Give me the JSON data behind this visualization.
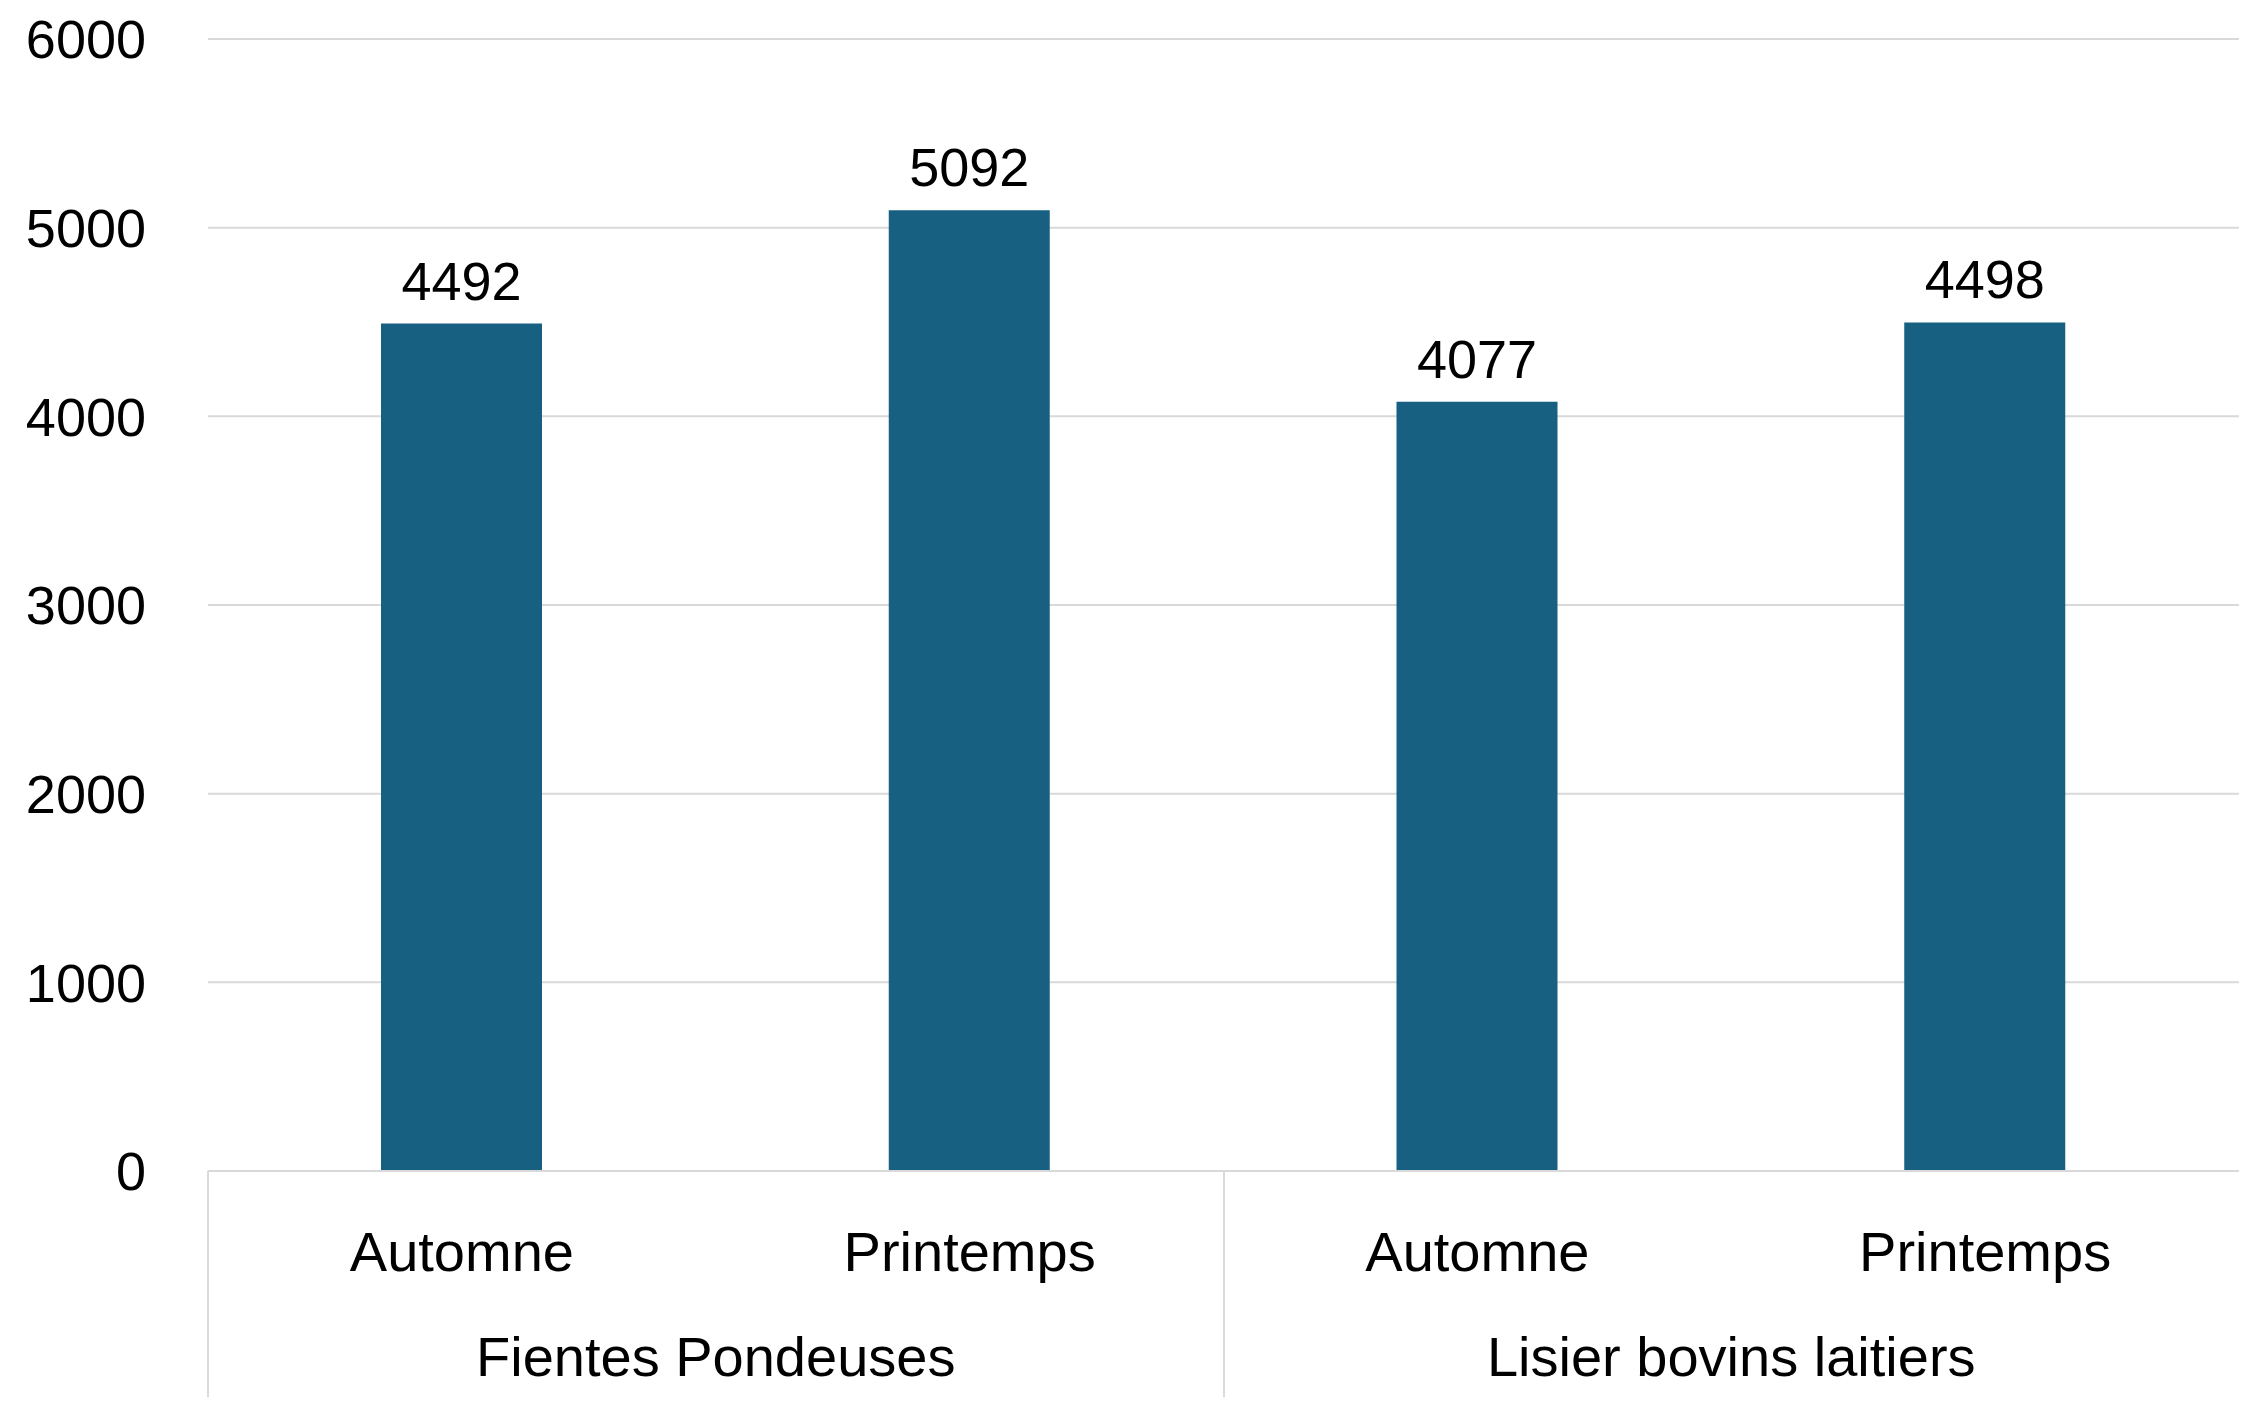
{
  "chart_data": {
    "type": "bar",
    "categories": [
      "Automne",
      "Printemps",
      "Automne",
      "Printemps"
    ],
    "values": [
      4492,
      5092,
      4077,
      4498
    ],
    "color": "#176082",
    "ylim": [
      0,
      6000
    ],
    "yticks": [
      0,
      1000,
      2000,
      3000,
      4000,
      5000,
      6000
    ],
    "grid": "y",
    "data_labels": true,
    "annotations": [
      "Fientes Pondeuses",
      "Lisier bovins laitiers"
    ]
  }
}
